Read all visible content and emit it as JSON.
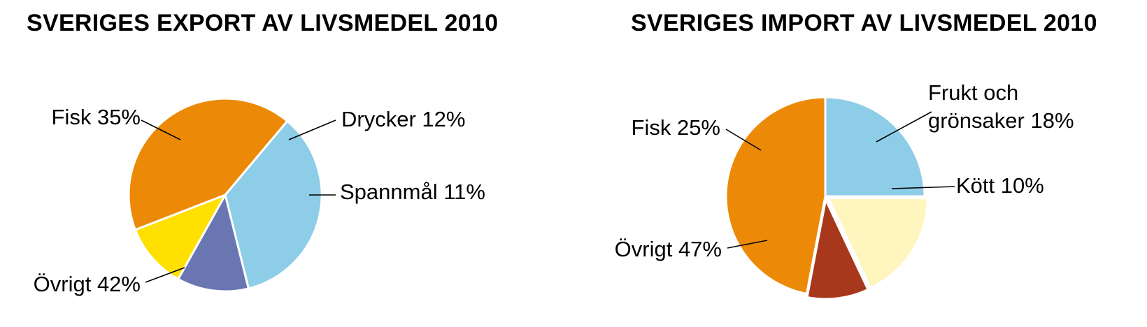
{
  "chart_data": [
    {
      "type": "pie",
      "title": "SVERIGES EXPORT AV LIVSMEDEL 2010",
      "slices": [
        {
          "name": "Fisk",
          "value": 35,
          "label": "Fisk 35%",
          "color": "#8ecde8"
        },
        {
          "name": "Drycker",
          "value": 12,
          "label": "Drycker 12%",
          "color": "#6a76b2"
        },
        {
          "name": "Spannmål",
          "value": 11,
          "label": "Spannmål 11%",
          "color": "#ffe000"
        },
        {
          "name": "Övrigt",
          "value": 42,
          "label": "Övrigt 42%",
          "color": "#ec8a08"
        }
      ]
    },
    {
      "type": "pie",
      "title": "SVERIGES IMPORT AV LIVSMEDEL 2010",
      "slices": [
        {
          "name": "Fisk",
          "value": 25,
          "label": "Fisk 25%",
          "color": "#8ecde8"
        },
        {
          "name": "Frukt och grönsaker",
          "value": 18,
          "label": [
            "Frukt och",
            "grönsaker 18%"
          ],
          "color": "#fff5bf"
        },
        {
          "name": "Kött",
          "value": 10,
          "label": "Kött 10%",
          "color": "#a8381b"
        },
        {
          "name": "Övrigt",
          "value": 47,
          "label": "Övrigt 47%",
          "color": "#ec8a08"
        }
      ]
    }
  ]
}
